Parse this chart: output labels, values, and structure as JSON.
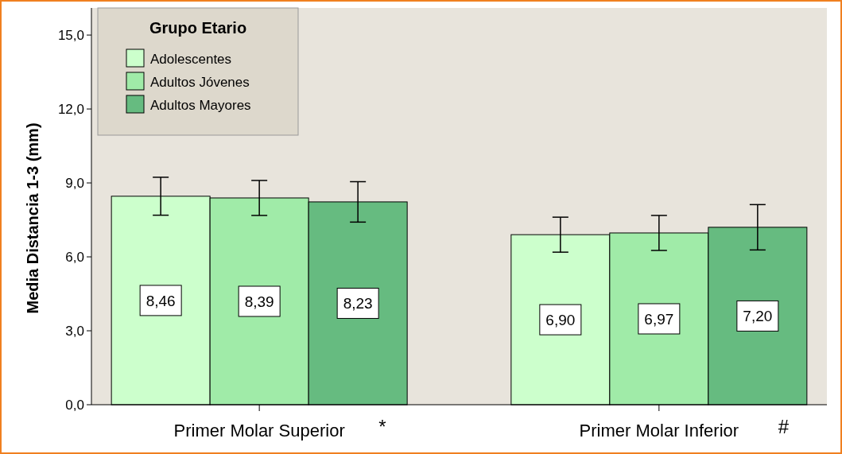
{
  "chart_data": {
    "type": "bar",
    "ylabel": "Media Distancia 1-3 (mm)",
    "legend_title": "Grupo Etario",
    "categories": [
      "Primer Molar Superior",
      "Primer Molar Inferior"
    ],
    "series": [
      {
        "name": "Adolescentes",
        "color": "#ccffcc",
        "values": [
          8.46,
          6.9
        ],
        "errors": [
          0.77,
          0.71
        ],
        "value_labels": [
          "8,46",
          "6,90"
        ]
      },
      {
        "name": "Adultos Jóvenes",
        "color": "#a0eba8",
        "values": [
          8.39,
          6.97
        ],
        "errors": [
          0.71,
          0.71
        ],
        "value_labels": [
          "8,39",
          "6,97"
        ]
      },
      {
        "name": "Adultos Mayores",
        "color": "#66bb80",
        "values": [
          8.23,
          7.2
        ],
        "errors": [
          0.82,
          0.92
        ],
        "value_labels": [
          "8,23",
          "7,20"
        ]
      }
    ],
    "ylim": [
      0,
      16.1
    ],
    "yticks": [
      {
        "value": 0,
        "label": "0,0"
      },
      {
        "value": 3,
        "label": "3,0"
      },
      {
        "value": 6,
        "label": "6,0"
      },
      {
        "value": 9,
        "label": "9,0"
      },
      {
        "value": 12,
        "label": "12,0"
      },
      {
        "value": 15,
        "label": "15,0"
      }
    ],
    "annotations": [
      "*",
      "#"
    ],
    "legend": "top left",
    "grid": false
  }
}
